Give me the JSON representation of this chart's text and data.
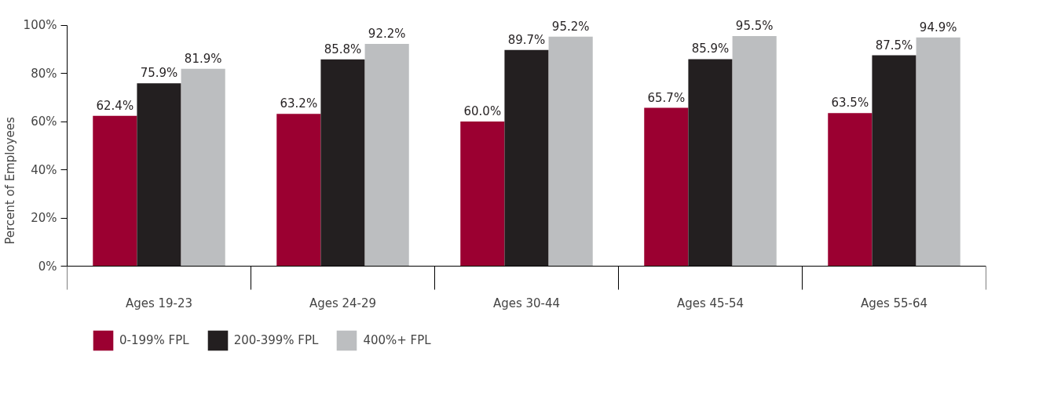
{
  "chart_data": {
    "type": "bar",
    "ylabel": "Percent of Employees",
    "categories": [
      "Ages 19-23",
      "Ages 24-29",
      "Ages 30-44",
      "Ages 45-54",
      "Ages 55-64"
    ],
    "series": [
      {
        "name": "0-199% FPL",
        "color": "#9b0031",
        "values": [
          62.4,
          63.2,
          60.0,
          65.7,
          63.5
        ],
        "value_labels": [
          "62.4%",
          "63.2%",
          "60.0%",
          "65.7%",
          "63.5%"
        ]
      },
      {
        "name": "200-399% FPL",
        "color": "#231f20",
        "values": [
          75.9,
          85.8,
          89.7,
          85.9,
          87.5
        ],
        "value_labels": [
          "75.9%",
          "85.8%",
          "89.7%",
          "85.9%",
          "87.5%"
        ]
      },
      {
        "name": "400%+ FPL",
        "color": "#bcbec0",
        "values": [
          81.9,
          92.2,
          95.2,
          95.5,
          94.9
        ],
        "value_labels": [
          "81.9%",
          "92.2%",
          "95.2%",
          "95.5%",
          "94.9%"
        ]
      }
    ],
    "ylim": [
      0,
      100
    ],
    "yticks": [
      {
        "value": 0,
        "label": "0%"
      },
      {
        "value": 20,
        "label": "20%"
      },
      {
        "value": 40,
        "label": "40%"
      },
      {
        "value": 60,
        "label": "60%"
      },
      {
        "value": 80,
        "label": "80%"
      },
      {
        "value": 100,
        "label": "100%"
      }
    ],
    "grid": false,
    "legend": "bottom left"
  }
}
